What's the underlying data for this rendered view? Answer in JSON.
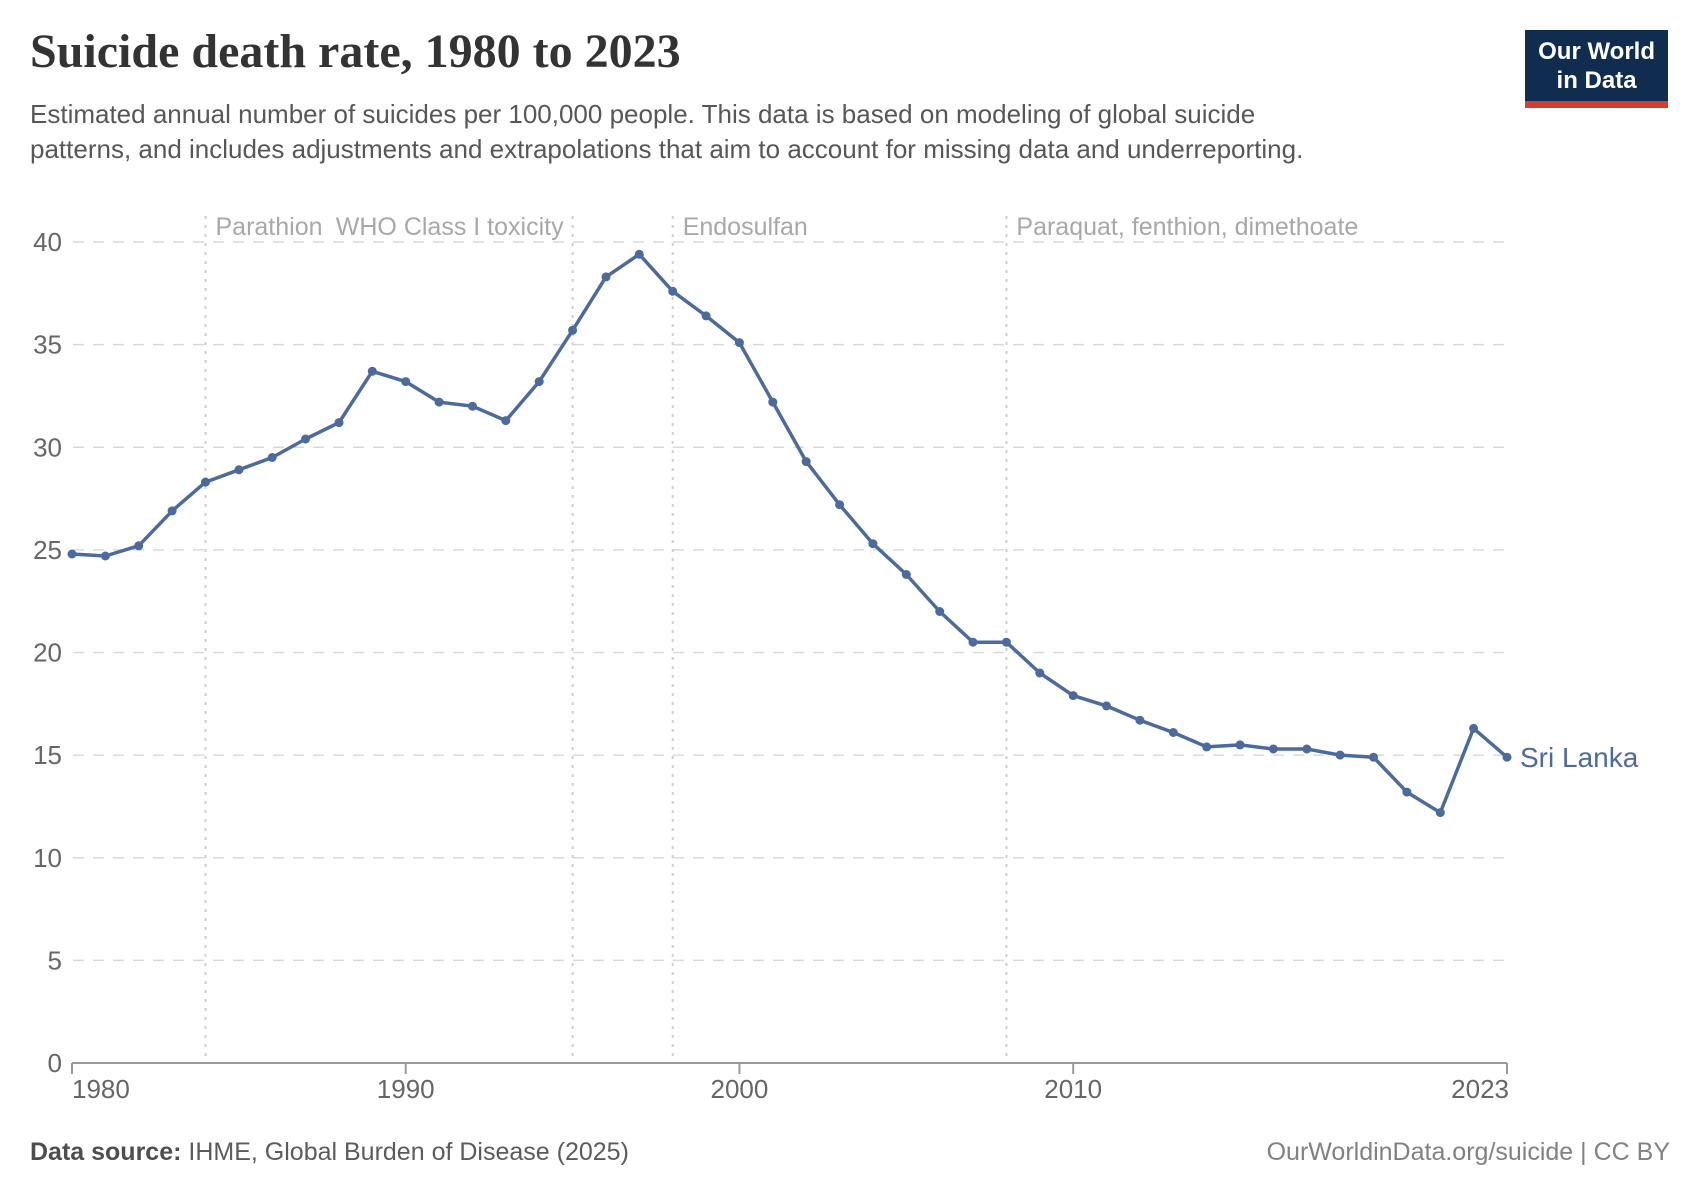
{
  "header": {
    "title": "Suicide death rate, 1980 to 2023",
    "subtitle_line1": "Estimated annual number of suicides per 100,000 people. This data is based on modeling of global suicide",
    "subtitle_line2": "patterns, and includes adjustments and extrapolations that aim to account for missing data and underreporting.",
    "logo_line1": "Our World",
    "logo_line2": "in Data"
  },
  "chart_data": {
    "type": "line",
    "title": "Suicide death rate, 1980 to 2023",
    "xlabel": "",
    "ylabel": "",
    "xlim": [
      1980,
      2023
    ],
    "ylim": [
      0,
      40
    ],
    "grid": true,
    "x_ticks": [
      1980,
      1990,
      2000,
      2010,
      2023
    ],
    "y_ticks": [
      0,
      5,
      10,
      15,
      20,
      25,
      30,
      35,
      40
    ],
    "years": [
      1980,
      1981,
      1982,
      1983,
      1984,
      1985,
      1986,
      1987,
      1988,
      1989,
      1990,
      1991,
      1992,
      1993,
      1994,
      1995,
      1996,
      1997,
      1998,
      1999,
      2000,
      2001,
      2002,
      2003,
      2004,
      2005,
      2006,
      2007,
      2008,
      2009,
      2010,
      2011,
      2012,
      2013,
      2014,
      2015,
      2016,
      2017,
      2018,
      2019,
      2020,
      2021,
      2022,
      2023
    ],
    "series": [
      {
        "name": "Sri Lanka",
        "color": "#4C6A9C",
        "values": [
          24.8,
          24.7,
          25.2,
          26.9,
          28.3,
          28.9,
          29.5,
          30.4,
          31.2,
          33.7,
          33.2,
          32.2,
          32.0,
          31.3,
          33.2,
          35.7,
          38.3,
          39.4,
          37.6,
          36.4,
          35.1,
          32.2,
          29.3,
          27.2,
          25.3,
          23.8,
          22.0,
          20.5,
          20.5,
          19.0,
          17.9,
          17.4,
          16.7,
          16.1,
          15.4,
          15.5,
          15.3,
          15.3,
          15.0,
          14.9,
          13.2,
          12.2,
          16.3,
          14.9
        ]
      }
    ],
    "end_label": "Sri Lanka",
    "annotations": [
      {
        "year": 1984,
        "label": "Parathion",
        "align": "left"
      },
      {
        "year": 1995,
        "label": "WHO Class I toxicity",
        "align": "right"
      },
      {
        "year": 1998,
        "label": "Endosulfan",
        "align": "left"
      },
      {
        "year": 2008,
        "label": "Paraquat, fenthion, dimethoate",
        "align": "left"
      }
    ],
    "colors": {
      "line": "#4C6A9C",
      "grid": "#d9d9d9",
      "axis": "#999999",
      "tick_label": "#666666",
      "annotation": "#a8a8a8"
    }
  },
  "footer": {
    "source_label": "Data source:",
    "source_value": " IHME, Global Burden of Disease (2025)",
    "attribution": "OurWorldinData.org/suicide | CC BY"
  }
}
